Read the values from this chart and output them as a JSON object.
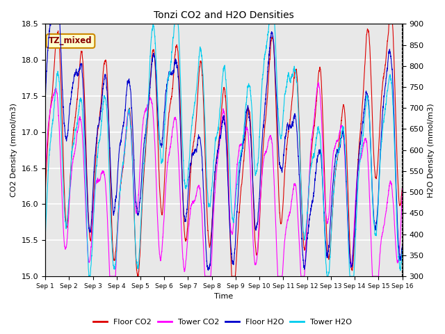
{
  "title": "Tonzi CO2 and H2O Densities",
  "xlabel": "Time",
  "ylabel_left": "CO2 Density (mmol/m3)",
  "ylabel_right": "H2O Density (mmol/m3)",
  "annotation": "TZ_mixed",
  "x_tick_labels": [
    "Sep 1",
    "Sep 2",
    "Sep 3",
    "Sep 4",
    "Sep 5",
    "Sep 6",
    "Sep 7",
    "Sep 8",
    "Sep 9",
    "Sep 10",
    "Sep 11",
    "Sep 12",
    "Sep 13",
    "Sep 14",
    "Sep 15",
    "Sep 16"
  ],
  "ylim_left": [
    15.0,
    18.5
  ],
  "ylim_right": [
    300,
    900
  ],
  "y_ticks_left": [
    15.0,
    15.5,
    16.0,
    16.5,
    17.0,
    17.5,
    18.0,
    18.5
  ],
  "y_ticks_right": [
    300,
    350,
    400,
    450,
    500,
    550,
    600,
    650,
    700,
    750,
    800,
    850,
    900
  ],
  "colors": {
    "floor_co2": "#dd0000",
    "tower_co2": "#ff00ff",
    "floor_h2o": "#0000cc",
    "tower_h2o": "#00ccee"
  },
  "legend_labels": [
    "Floor CO2",
    "Tower CO2",
    "Floor H2O",
    "Tower H2O"
  ],
  "background_color": "#e8e8e8",
  "plot_bg_light": "#f0f0f0",
  "n_points": 2880,
  "seed": 12345
}
